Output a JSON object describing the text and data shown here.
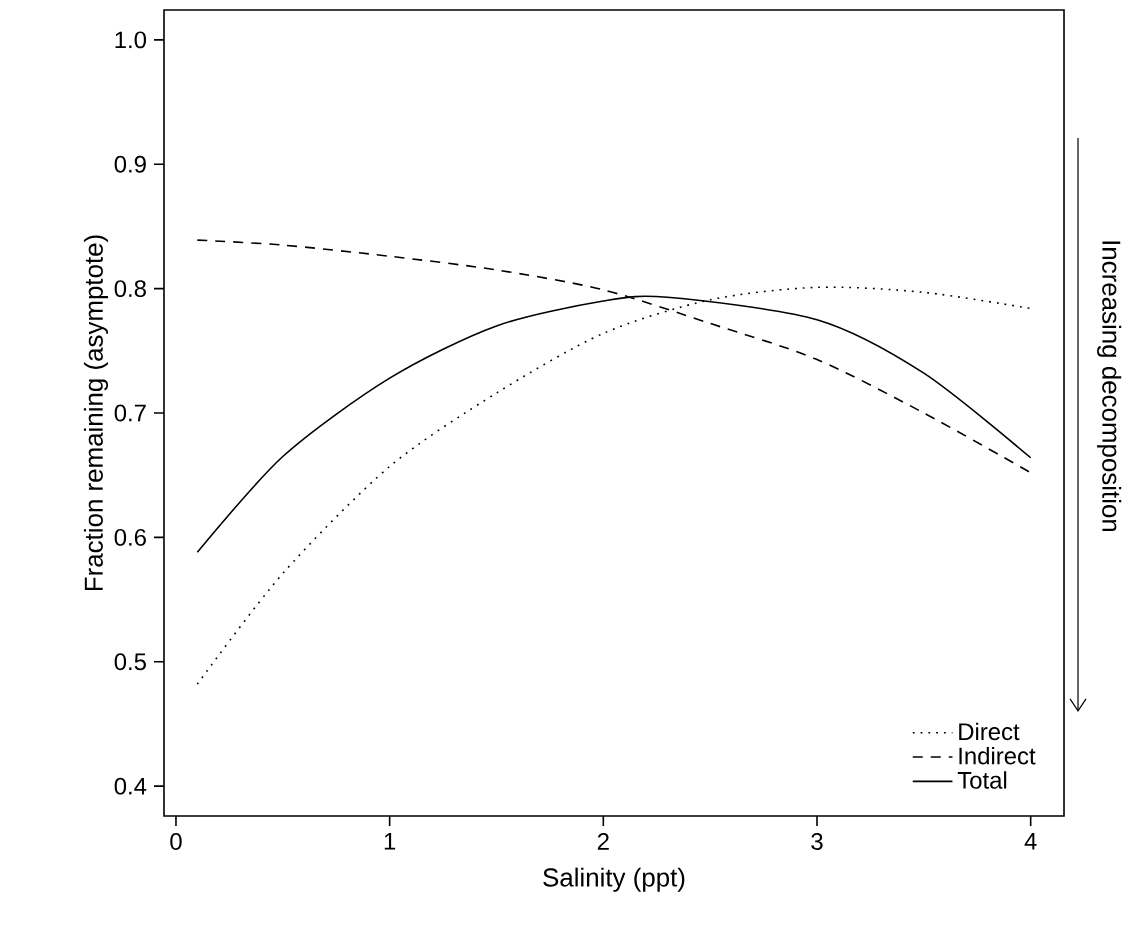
{
  "chart_data": {
    "type": "line",
    "xlabel": "Salinity (ppt)",
    "ylabel": "Fraction remaining (asymptote)",
    "annotations": [
      "Increasing decomposition"
    ],
    "xlim": [
      -0.056,
      4.156
    ],
    "ylim": [
      0.376,
      1.024
    ],
    "xticks": [
      0,
      1,
      2,
      3,
      4
    ],
    "yticks": [
      {
        "value": 0.4,
        "label": "0.4"
      },
      {
        "value": 0.5,
        "label": "0.5"
      },
      {
        "value": 0.6,
        "label": "0.6"
      },
      {
        "value": 0.7,
        "label": "0.7"
      },
      {
        "value": 0.8,
        "label": "0.8"
      },
      {
        "value": 0.9,
        "label": "0.9"
      },
      {
        "value": 1.0,
        "label": "1.0"
      }
    ],
    "grid": false,
    "legend": "bottom right",
    "marker": "none",
    "series": [
      {
        "name": "Direct",
        "color": "#000000",
        "line_style": "dotted",
        "x": [
          0.1,
          0.5,
          1,
          1.5,
          2,
          2.5,
          3,
          3.5,
          4
        ],
        "values": [
          0.482,
          0.571,
          0.657,
          0.716,
          0.764,
          0.791,
          0.801,
          0.797,
          0.784
        ]
      },
      {
        "name": "Indirect",
        "color": "#000000",
        "line_style": "dashed",
        "x": [
          0.1,
          0.5,
          1,
          1.5,
          2,
          2.5,
          3,
          3.5,
          4
        ],
        "values": [
          0.839,
          0.835,
          0.826,
          0.815,
          0.799,
          0.772,
          0.743,
          0.7,
          0.652
        ]
      },
      {
        "name": "Total",
        "color": "#000000",
        "line_style": "solid",
        "x": [
          0.1,
          0.5,
          1,
          1.5,
          2,
          2.3,
          3,
          3.5,
          4
        ],
        "values": [
          0.588,
          0.665,
          0.728,
          0.77,
          0.79,
          0.793,
          0.775,
          0.732,
          0.664
        ]
      }
    ]
  }
}
